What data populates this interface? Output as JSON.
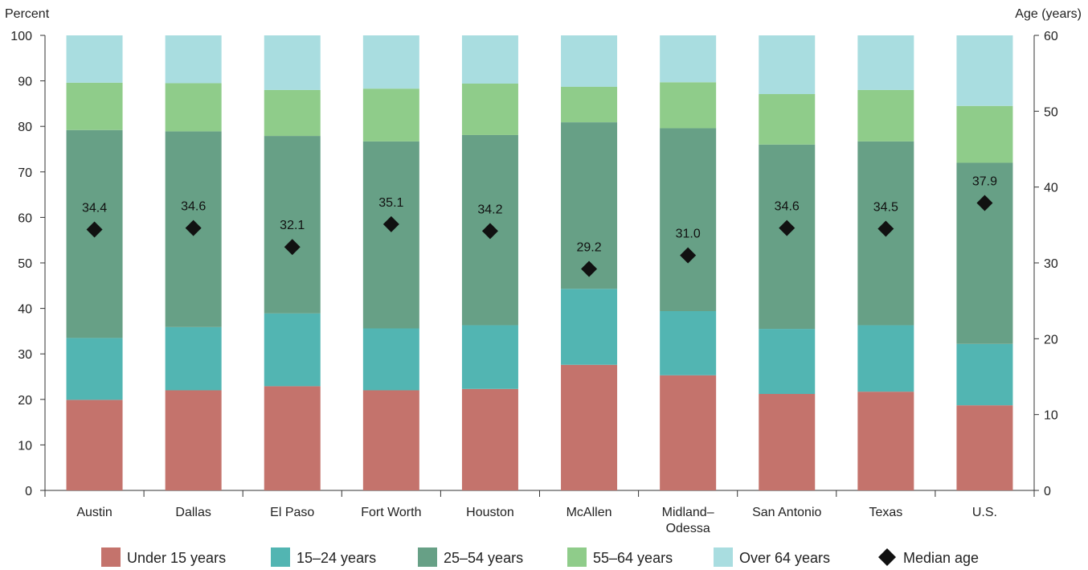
{
  "chart_data": {
    "type": "bar",
    "stacked": true,
    "categories": [
      "Austin",
      "Dallas",
      "El Paso",
      "Fort Worth",
      "Houston",
      "McAllen",
      "Midland–Odessa",
      "San Antonio",
      "Texas",
      "U.S."
    ],
    "category_lines": [
      [
        "Austin"
      ],
      [
        "Dallas"
      ],
      [
        "El Paso"
      ],
      [
        "Fort Worth"
      ],
      [
        "Houston"
      ],
      [
        "McAllen"
      ],
      [
        "Midland–",
        "Odessa"
      ],
      [
        "San Antonio"
      ],
      [
        "Texas"
      ],
      [
        "U.S."
      ]
    ],
    "series": [
      {
        "name": "Under 15 years",
        "color": "#c4736c",
        "values": [
          19.9,
          22.0,
          22.9,
          22.0,
          22.3,
          27.6,
          25.3,
          21.2,
          21.7,
          18.7
        ]
      },
      {
        "name": "15–24 years",
        "color": "#52b5b2",
        "values": [
          13.6,
          13.9,
          16.0,
          13.6,
          14.0,
          16.7,
          14.1,
          14.3,
          14.6,
          13.5
        ]
      },
      {
        "name": "25–54 years",
        "color": "#67a086",
        "values": [
          45.7,
          43.0,
          39.0,
          41.1,
          41.8,
          36.6,
          40.2,
          40.5,
          40.4,
          39.8
        ]
      },
      {
        "name": "55–64 years",
        "color": "#8fcc8a",
        "values": [
          10.4,
          10.6,
          10.1,
          11.6,
          11.3,
          7.8,
          10.1,
          11.1,
          11.3,
          12.5
        ]
      },
      {
        "name": "Over 64 years",
        "color": "#a9dde0",
        "values": [
          10.4,
          10.5,
          12.0,
          11.7,
          10.6,
          11.3,
          10.3,
          12.9,
          12.0,
          15.5
        ]
      }
    ],
    "median_age": {
      "name": "Median age",
      "color": "#111111",
      "values": [
        34.4,
        34.6,
        32.1,
        35.1,
        34.2,
        29.2,
        31.0,
        34.6,
        34.5,
        37.9
      ],
      "labels": [
        "34.4",
        "34.6",
        "32.1",
        "35.1",
        "34.2",
        "29.2",
        "31.0",
        "34.6",
        "34.5",
        "37.9"
      ]
    },
    "ylabel": "Percent",
    "ylim": [
      0,
      100
    ],
    "yticks": [
      "0",
      "10",
      "20",
      "30",
      "40",
      "50",
      "60",
      "70",
      "80",
      "90",
      "100"
    ],
    "y2label": "Age (years)",
    "y2lim": [
      0,
      60
    ],
    "y2ticks": [
      "0",
      "10",
      "20",
      "30",
      "40",
      "50",
      "60"
    ],
    "grid": false,
    "legend_position": "bottom"
  }
}
